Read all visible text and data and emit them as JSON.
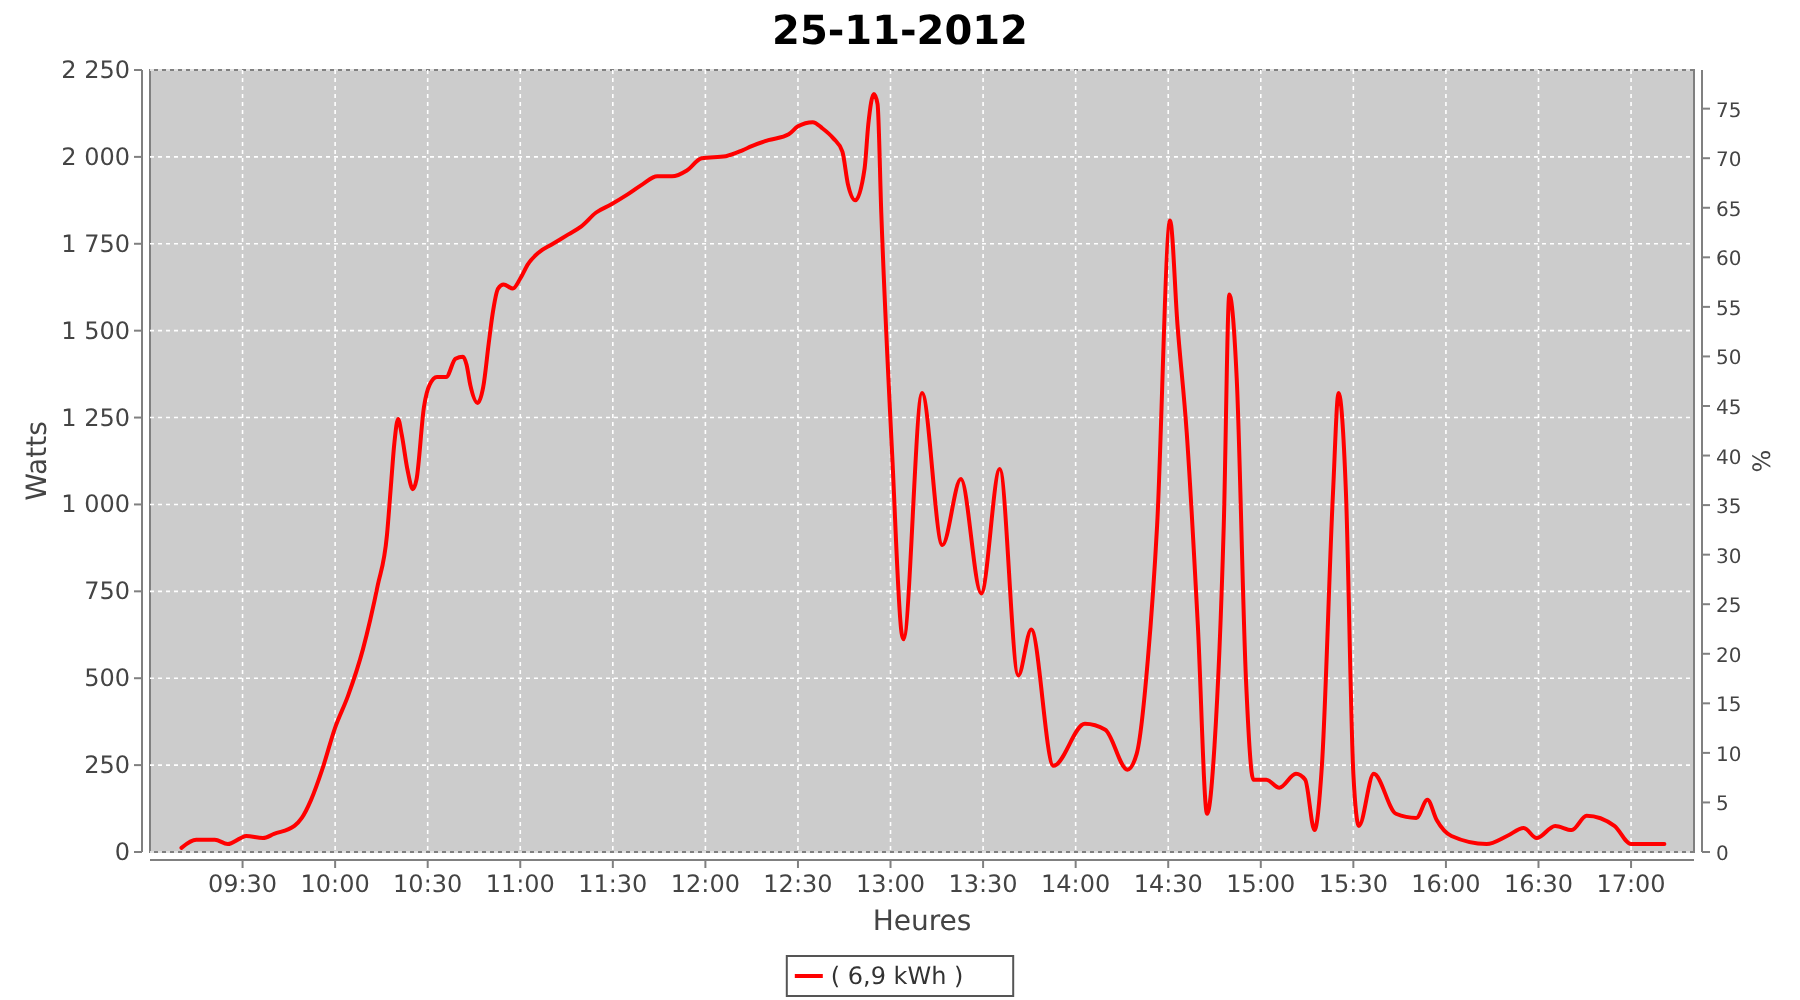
{
  "chart_data": {
    "type": "line",
    "title": "25-11-2012",
    "xlabel": "Heures",
    "ylabel": "Watts",
    "y2label": "%",
    "xlim": [
      9.0,
      17.34
    ],
    "xticks": [
      {
        "value": 9.5,
        "label": "09:30"
      },
      {
        "value": 10,
        "label": "10:00"
      },
      {
        "value": 10.5,
        "label": "10:30"
      },
      {
        "value": 11,
        "label": "11:00"
      },
      {
        "value": 11.5,
        "label": "11:30"
      },
      {
        "value": 12,
        "label": "12:00"
      },
      {
        "value": 12.5,
        "label": "12:30"
      },
      {
        "value": 13,
        "label": "13:00"
      },
      {
        "value": 13.5,
        "label": "13:30"
      },
      {
        "value": 14,
        "label": "14:00"
      },
      {
        "value": 14.5,
        "label": "14:30"
      },
      {
        "value": 15,
        "label": "15:00"
      },
      {
        "value": 15.5,
        "label": "15:30"
      },
      {
        "value": 16,
        "label": "16:00"
      },
      {
        "value": 16.5,
        "label": "16:30"
      },
      {
        "value": 17,
        "label": "17:00"
      }
    ],
    "ylim": [
      0,
      2250
    ],
    "yticks": [
      0,
      250,
      500,
      750,
      {
        "value": 1000,
        "label": "1 000"
      },
      {
        "value": 1250,
        "label": "1 250"
      },
      {
        "value": 1500,
        "label": "1 500"
      },
      {
        "value": 1750,
        "label": "1 750"
      },
      {
        "value": 2000,
        "label": "2 000"
      },
      {
        "value": 2250,
        "label": "2 250"
      }
    ],
    "y2lim": [
      0,
      78.9
    ],
    "y2ticks": [
      0,
      5,
      10,
      15,
      20,
      25,
      30,
      35,
      40,
      45,
      50,
      55,
      60,
      65,
      70,
      75
    ],
    "grid": true,
    "legend": "bottom",
    "marker": "none",
    "line_style": "solid",
    "x": [
      9.17,
      9.25,
      9.35,
      9.42,
      9.49,
      9.52,
      9.61,
      9.67,
      9.78,
      9.82,
      9.87,
      9.93,
      10.0,
      10.07,
      10.15,
      10.19,
      10.23,
      10.28,
      10.3,
      10.32,
      10.34,
      10.36,
      10.39,
      10.42,
      10.44,
      10.48,
      10.51,
      10.55,
      10.6,
      10.65,
      10.69,
      10.71,
      10.73,
      10.77,
      10.8,
      10.83,
      10.85,
      10.88,
      10.91,
      10.96,
      11.0,
      11.04,
      11.1,
      11.17,
      11.26,
      11.33,
      11.41,
      11.49,
      11.58,
      11.66,
      11.74,
      11.82,
      11.9,
      11.98,
      12.11,
      12.2,
      12.25,
      12.34,
      12.45,
      12.5,
      12.58,
      12.63,
      12.69,
      12.74,
      12.77,
      12.81,
      12.86,
      12.88,
      12.91,
      12.93,
      12.95,
      13.01,
      13.06,
      13.07,
      13.17,
      13.28,
      13.38,
      13.49,
      13.59,
      13.69,
      13.76,
      13.88,
      14.05,
      14.16,
      14.28,
      14.33,
      14.39,
      14.44,
      14.51,
      14.55,
      14.6,
      14.66,
      14.71,
      14.75,
      14.8,
      14.83,
      14.87,
      14.92,
      14.96,
      15.03,
      15.1,
      15.19,
      15.24,
      15.29,
      15.33,
      15.39,
      15.42,
      15.46,
      15.5,
      15.53,
      15.61,
      15.73,
      15.84,
      15.9,
      15.95,
      16.03,
      16.22,
      16.33,
      16.42,
      16.49,
      16.59,
      16.68,
      16.76,
      16.91,
      17.0,
      17.09,
      17.18
    ],
    "series": [
      {
        "name": "( 6,9 kWh )",
        "color": "#ff0000",
        "values": [
          12,
          35,
          35,
          23,
          40,
          46,
          40,
          52,
          75,
          98,
          150,
          237,
          358,
          450,
          583,
          669,
          767,
          912,
          1044,
          1177,
          1246,
          1200,
          1102,
          1044,
          1073,
          1281,
          1344,
          1367,
          1367,
          1419,
          1425,
          1402,
          1344,
          1292,
          1338,
          1465,
          1546,
          1621,
          1633,
          1621,
          1650,
          1690,
          1725,
          1748,
          1777,
          1800,
          1840,
          1863,
          1892,
          1921,
          1944,
          1944,
          1961,
          1996,
          2002,
          2019,
          2031,
          2048,
          2065,
          2088,
          2100,
          2083,
          2054,
          2015,
          1921,
          1875,
          1967,
          2094,
          2181,
          2152,
          1840,
          1131,
          629,
          612,
          1321,
          883,
          1073,
          744,
          1102,
          508,
          640,
          248,
          369,
          352,
          237,
          283,
          554,
          940,
          1817,
          1517,
          1206,
          652,
          110,
          306,
          940,
          1604,
          1362,
          496,
          208,
          208,
          185,
          225,
          208,
          63,
          248,
          1033,
          1321,
          1033,
          225,
          75,
          225,
          110,
          98,
          150,
          92,
          46,
          23,
          46,
          69,
          40,
          75,
          63,
          104,
          75,
          23,
          23,
          23
        ]
      }
    ]
  }
}
